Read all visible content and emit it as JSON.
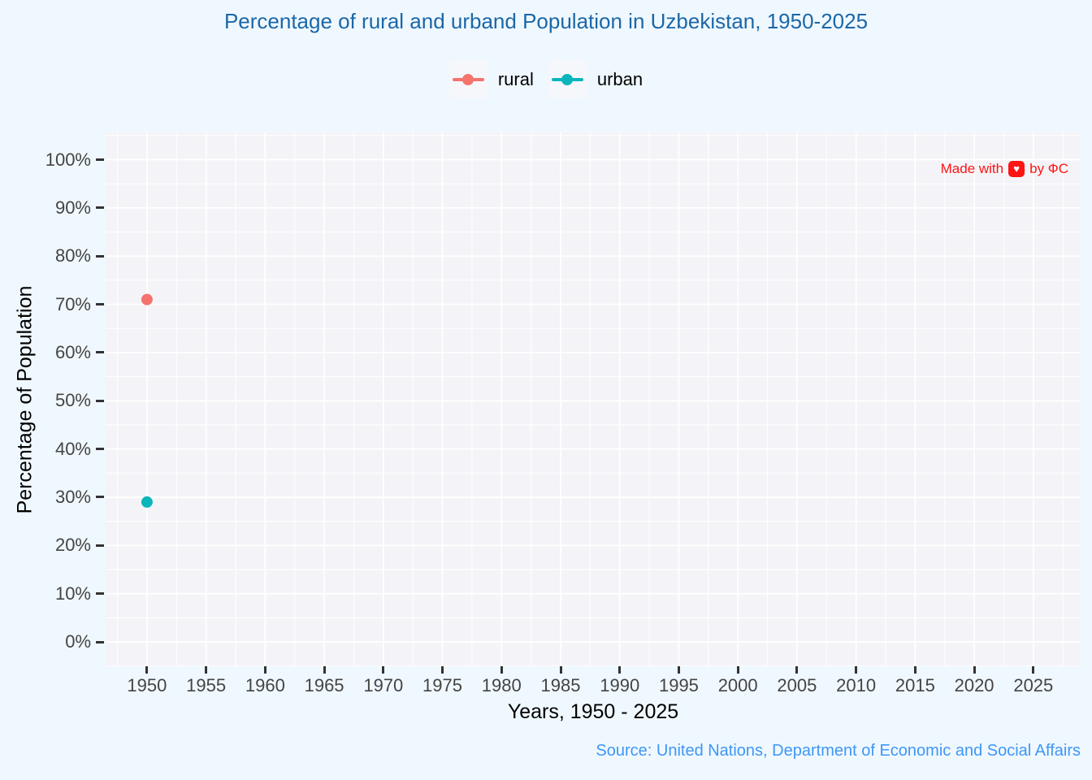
{
  "page": {
    "background": "#f0f8ff",
    "title": "Percentage of rural and urband Population in Uzbekistan, 1950-2025",
    "title_color": "#1b67a8",
    "watermark": {
      "prefix": "Made with",
      "suffix": "by ФС",
      "heart_icon": "heart-icon",
      "color": "#ff1414"
    },
    "source": "Source: United Nations, Department of Economic and Social Affairs",
    "source_color": "#3e97f5"
  },
  "legend": {
    "position": "top-center",
    "items": [
      {
        "label": "rural",
        "color": "#f4736d"
      },
      {
        "label": "urban",
        "color": "#0ab6bc"
      }
    ]
  },
  "chart_data": {
    "type": "scatter",
    "title": "Percentage of rural and urband Population in Uzbekistan, 1950-2025",
    "xlabel": "Years, 1950 - 2025",
    "ylabel": "Percentage of Population",
    "series": [
      {
        "name": "rural",
        "color": "#f4736d",
        "x": [
          1950
        ],
        "y": [
          71
        ]
      },
      {
        "name": "urban",
        "color": "#0ab6bc",
        "x": [
          1950
        ],
        "y": [
          29
        ]
      }
    ],
    "x_ticks": [
      1950,
      1955,
      1960,
      1965,
      1970,
      1975,
      1980,
      1985,
      1990,
      1995,
      2000,
      2005,
      2010,
      2015,
      2020,
      2025
    ],
    "y_ticks": [
      0,
      10,
      20,
      30,
      40,
      50,
      60,
      70,
      80,
      90,
      100
    ],
    "y_tick_suffix": "%",
    "xlim": [
      1946.5,
      2029
    ],
    "ylim": [
      -5.05,
      105.65
    ],
    "x_minor_step": 2.5,
    "y_minor_step": 5,
    "grid": true,
    "legend_position": "top-center",
    "marker_size_px": 14,
    "colors": {
      "plot_bg": "#f4f4f8",
      "grid": "#ffffff",
      "tick": "#333333",
      "tick_label": "#444444"
    }
  }
}
